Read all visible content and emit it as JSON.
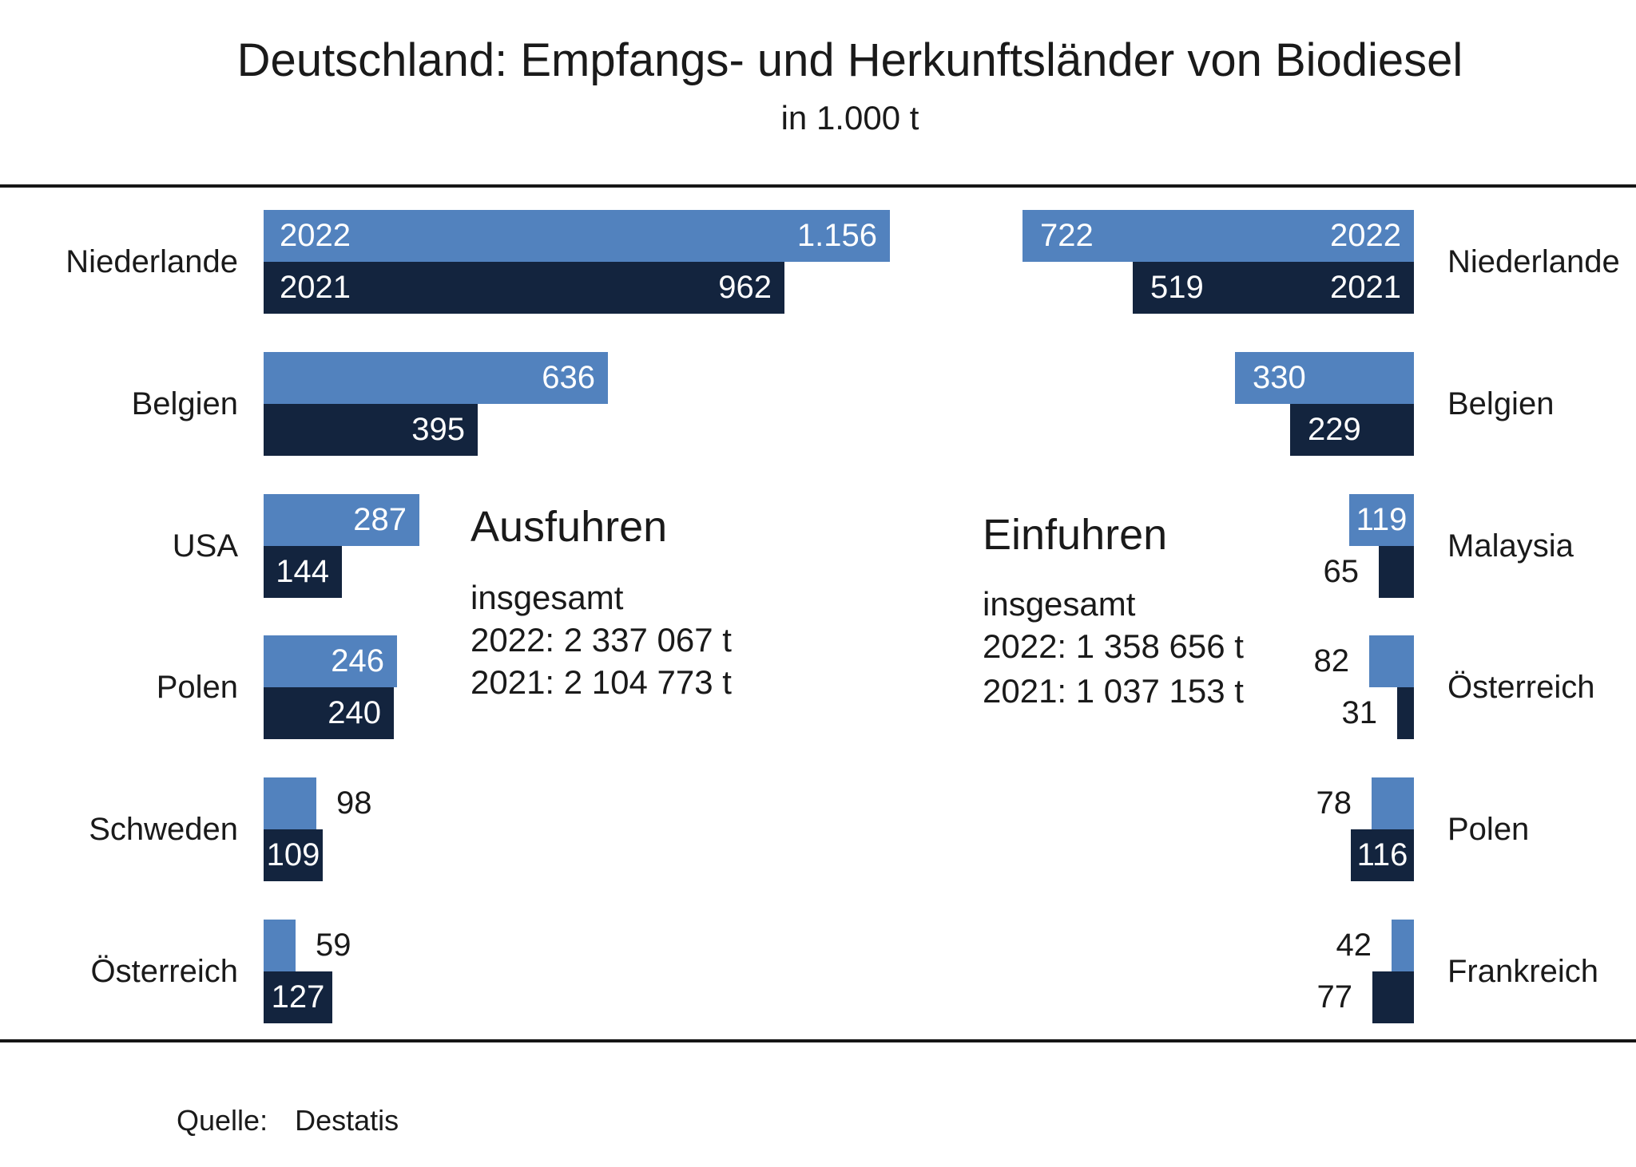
{
  "title": "Deutschland: Empfangs- und Herkunftsländer von Biodiesel",
  "subtitle": "in 1.000 t",
  "source": {
    "label": "Quelle:",
    "value": "Destatis"
  },
  "colors": {
    "bar_2022": "#5282BE",
    "bar_2021": "#13243E",
    "text": "#1A1A1A",
    "label_on_bar": "#FFFFFF",
    "rule": "#161616"
  },
  "legend": {
    "year_2022": "2022",
    "year_2021": "2021"
  },
  "chart_data": {
    "type": "bar",
    "orientation": "horizontal",
    "unit": "1.000 t",
    "series_years": [
      "2022",
      "2021"
    ],
    "panels": [
      {
        "id": "ausfuhren",
        "heading": "Ausfuhren",
        "direction": "ltr",
        "totals": {
          "label": "insgesamt",
          "line_2022": "2022: 2 337 067 t",
          "line_2021": "2021: 2 104 773 t"
        },
        "rows": [
          {
            "country": "Niederlande",
            "v2022": 1156,
            "d2022": "1.156",
            "p2022": "inside-end",
            "v2021": 962,
            "d2021": "962",
            "p2021": "inside-end",
            "show_year_labels": true
          },
          {
            "country": "Belgien",
            "v2022": 636,
            "d2022": "636",
            "p2022": "inside-end",
            "v2021": 395,
            "d2021": "395",
            "p2021": "inside-end",
            "show_year_labels": false
          },
          {
            "country": "USA",
            "v2022": 287,
            "d2022": "287",
            "p2022": "inside-end",
            "v2021": 144,
            "d2021": "144",
            "p2021": "inside-end",
            "show_year_labels": false
          },
          {
            "country": "Polen",
            "v2022": 246,
            "d2022": "246",
            "p2022": "inside-end",
            "v2021": 240,
            "d2021": "240",
            "p2021": "inside-end",
            "show_year_labels": false
          },
          {
            "country": "Schweden",
            "v2022": 98,
            "d2022": "98",
            "p2022": "outside",
            "v2021": 109,
            "d2021": "109",
            "p2021": "inside-center",
            "show_year_labels": false
          },
          {
            "country": "Österreich",
            "v2022": 59,
            "d2022": "59",
            "p2022": "outside",
            "v2021": 127,
            "d2021": "127",
            "p2021": "inside-center",
            "show_year_labels": false
          }
        ]
      },
      {
        "id": "einfuhren",
        "heading": "Einfuhren",
        "direction": "rtl",
        "totals": {
          "label": "insgesamt",
          "line_2022": "2022: 1 358 656 t",
          "line_2021": "2021: 1 037 153 t"
        },
        "rows": [
          {
            "country": "Niederlande",
            "v2022": 722,
            "d2022": "722",
            "p2022": "inside-start",
            "v2021": 519,
            "d2021": "519",
            "p2021": "inside-start",
            "show_year_labels": true
          },
          {
            "country": "Belgien",
            "v2022": 330,
            "d2022": "330",
            "p2022": "inside-start",
            "v2021": 229,
            "d2021": "229",
            "p2021": "inside-start",
            "show_year_labels": false
          },
          {
            "country": "Malaysia",
            "v2022": 119,
            "d2022": "119",
            "p2022": "inside-center",
            "v2021": 65,
            "d2021": "65",
            "p2021": "outside",
            "show_year_labels": false
          },
          {
            "country": "Österreich",
            "v2022": 82,
            "d2022": "82",
            "p2022": "outside",
            "v2021": 31,
            "d2021": "31",
            "p2021": "outside",
            "show_year_labels": false
          },
          {
            "country": "Polen",
            "v2022": 78,
            "d2022": "78",
            "p2022": "outside",
            "v2021": 116,
            "d2021": "116",
            "p2021": "inside-center",
            "show_year_labels": false
          },
          {
            "country": "Frankreich",
            "v2022": 42,
            "d2022": "42",
            "p2022": "outside",
            "v2021": 77,
            "d2021": "77",
            "p2021": "outside",
            "show_year_labels": false
          }
        ]
      }
    ]
  }
}
